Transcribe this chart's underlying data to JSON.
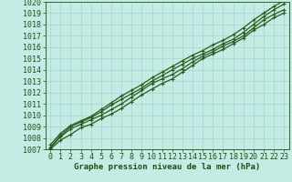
{
  "title": "Graphe pression niveau de la mer (hPa)",
  "xlim": [
    -0.5,
    23.5
  ],
  "ylim": [
    1007,
    1020
  ],
  "yticks": [
    1007,
    1008,
    1009,
    1010,
    1011,
    1012,
    1013,
    1014,
    1015,
    1016,
    1017,
    1018,
    1019,
    1020
  ],
  "xticks": [
    0,
    1,
    2,
    3,
    4,
    5,
    6,
    7,
    8,
    9,
    10,
    11,
    12,
    13,
    14,
    15,
    16,
    17,
    18,
    19,
    20,
    21,
    22,
    23
  ],
  "background_color": "#c5ece4",
  "grid_color": "#9ed8cf",
  "line_color": "#2d5a1b",
  "title_color": "#1a5010",
  "tick_color": "#1a5010",
  "tick_fontsize": 6,
  "title_fontsize": 6.5,
  "series": [
    [
      1007.0,
      1007.8,
      1008.3,
      1008.9,
      1009.2,
      1009.7,
      1010.1,
      1010.6,
      1011.2,
      1011.8,
      1012.3,
      1012.8,
      1013.2,
      1013.8,
      1014.4,
      1015.0,
      1015.4,
      1015.8,
      1016.3,
      1016.8,
      1017.5,
      1018.0,
      1018.6,
      1019.0
    ],
    [
      1007.1,
      1008.1,
      1008.8,
      1009.2,
      1009.6,
      1010.0,
      1010.5,
      1011.0,
      1011.6,
      1012.2,
      1012.8,
      1013.2,
      1013.6,
      1014.1,
      1014.7,
      1015.2,
      1015.6,
      1016.1,
      1016.5,
      1017.0,
      1017.7,
      1018.4,
      1018.9,
      1019.3
    ],
    [
      1007.2,
      1008.2,
      1009.0,
      1009.4,
      1009.8,
      1010.3,
      1010.9,
      1011.4,
      1011.9,
      1012.4,
      1013.0,
      1013.5,
      1014.0,
      1014.5,
      1015.0,
      1015.4,
      1015.8,
      1016.3,
      1016.7,
      1017.3,
      1018.0,
      1018.7,
      1019.3,
      1019.8
    ],
    [
      1007.4,
      1008.4,
      1009.1,
      1009.5,
      1009.9,
      1010.5,
      1011.1,
      1011.7,
      1012.2,
      1012.7,
      1013.3,
      1013.8,
      1014.3,
      1014.8,
      1015.3,
      1015.7,
      1016.2,
      1016.6,
      1017.1,
      1017.7,
      1018.4,
      1019.0,
      1019.6,
      1020.1
    ]
  ]
}
